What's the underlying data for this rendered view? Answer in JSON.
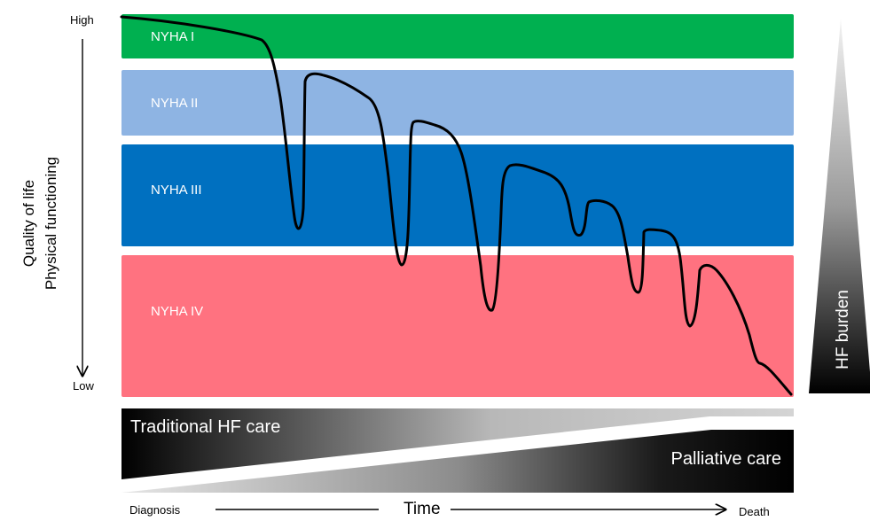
{
  "colors": {
    "nyha_1": "#00b050",
    "nyha_2": "#8eb4e3",
    "nyha_3": "#0070c0",
    "nyha_4": "#ff7280",
    "curve": "#000000"
  },
  "bands": [
    {
      "label": "NYHA I"
    },
    {
      "label": "NYHA II"
    },
    {
      "label": "NYHA III"
    },
    {
      "label": "NYHA IV"
    }
  ],
  "y_axis": {
    "high": "High",
    "low": "Low",
    "title_line1": "Quality of life",
    "title_line2": "Physical functioning"
  },
  "burden": {
    "label": "HF burden"
  },
  "care": {
    "traditional": "Traditional HF  care",
    "palliative": "Palliative care"
  },
  "x_axis": {
    "start": "Diagnosis",
    "title": "Time",
    "end": "Death"
  }
}
